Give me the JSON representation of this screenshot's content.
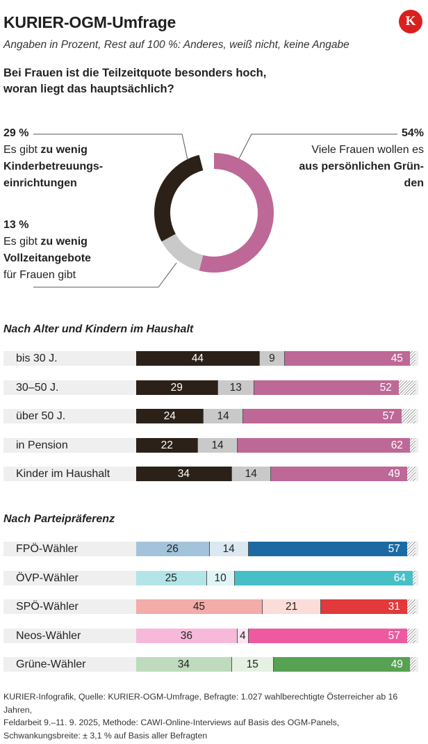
{
  "header": {
    "title": "KURIER-OGM-Umfrage",
    "subtitle": "Angaben in Prozent, Rest auf 100 %: Anderes, weiß nicht, keine Angabe",
    "logo_letter": "K",
    "question_line1": "Bei Frauen ist die Teilzeitquote besonders hoch,",
    "question_line2": "woran liegt das hauptsächlich?"
  },
  "donut": {
    "left_top": {
      "pct": "29 %",
      "line1_pre": "Es gibt ",
      "line1_bold": "zu wenig",
      "line2_bold": "Kinderbetreuungs-",
      "line3_bold": "einrichtungen"
    },
    "left_bottom": {
      "pct": "13 %",
      "line1_pre": "Es gibt ",
      "line1_bold": "zu wenig",
      "line2_bold": "Vollzeitangebote",
      "line3": "für Frauen gibt"
    },
    "right": {
      "pct": "54%",
      "line1": "Viele Frauen wollen es",
      "line2_bold": "aus persönlichen Grün-",
      "line3_bold": "den"
    }
  },
  "sections": {
    "age_title": "Nach Alter und Kindern im Haushalt",
    "party_title": "Nach Parteipräferenz"
  },
  "footer": {
    "line1": "KURIER-Infografik, Quelle: KURIER-OGM-Umfrage, Befragte: 1.027 wahlberechtigte Österreicher ab 16 Jahren,",
    "line2": "Feldarbeit 9.–11. 9. 2025,  Methode: CAWI-Online-Interviews auf Basis des OGM-Panels,",
    "line3": "Schwankungsbreite: ± 3,1 % auf Basis aller Befragten"
  },
  "colors": {
    "childcare": "#2b2118",
    "fulltime": "#c9c9c9",
    "personal": "#bd6896",
    "fpo": [
      "#a3c3db",
      "#dbe8f1",
      "#1c6aa3"
    ],
    "ovp": [
      "#b3e4e8",
      "#e0f4f5",
      "#46bfc5"
    ],
    "spo": [
      "#f3aca9",
      "#fbdcd9",
      "#e2393a"
    ],
    "neos": [
      "#f6b9d9",
      "#fde6f1",
      "#ee5a9f"
    ],
    "gruene": [
      "#bfdbbd",
      "#e5f1e3",
      "#56a152"
    ]
  },
  "chart_data": [
    {
      "type": "pie",
      "variant": "donut",
      "title": "Bei Frauen ist die Teilzeitquote besonders hoch, woran liegt das hauptsächlich?",
      "unit": "Prozent",
      "categories": [
        "aus persönlichen Gründen",
        "zu wenig Vollzeitangebote",
        "zu wenig Kinderbetreuungseinrichtungen"
      ],
      "values": [
        54,
        13,
        29
      ]
    },
    {
      "type": "bar",
      "orientation": "horizontal",
      "stacked": true,
      "title": "Nach Alter und Kindern im Haushalt",
      "categories": [
        "bis 30 J.",
        "30–50 J.",
        "über 50 J.",
        "in Pension",
        "Kinder im Haushalt"
      ],
      "series": [
        {
          "name": "zu wenig Kinderbetreuungseinrichtungen",
          "values": [
            44,
            29,
            24,
            22,
            34
          ]
        },
        {
          "name": "zu wenig Vollzeitangebote",
          "values": [
            9,
            13,
            14,
            14,
            14
          ]
        },
        {
          "name": "aus persönlichen Gründen",
          "values": [
            45,
            52,
            57,
            62,
            49
          ]
        }
      ]
    },
    {
      "type": "bar",
      "orientation": "horizontal",
      "stacked": true,
      "title": "Nach Parteipräferenz",
      "categories": [
        "FPÖ-Wähler",
        "ÖVP-Wähler",
        "SPÖ-Wähler",
        "Neos-Wähler",
        "Grüne-Wähler"
      ],
      "color_keys": [
        "fpo",
        "ovp",
        "spo",
        "neos",
        "gruene"
      ],
      "series": [
        {
          "name": "zu wenig Kinderbetreuungseinrichtungen",
          "values": [
            26,
            25,
            45,
            36,
            34
          ]
        },
        {
          "name": "zu wenig Vollzeitangebote",
          "values": [
            14,
            10,
            21,
            4,
            15
          ]
        },
        {
          "name": "aus persönlichen Gründen",
          "values": [
            57,
            64,
            31,
            57,
            49
          ]
        }
      ]
    }
  ]
}
